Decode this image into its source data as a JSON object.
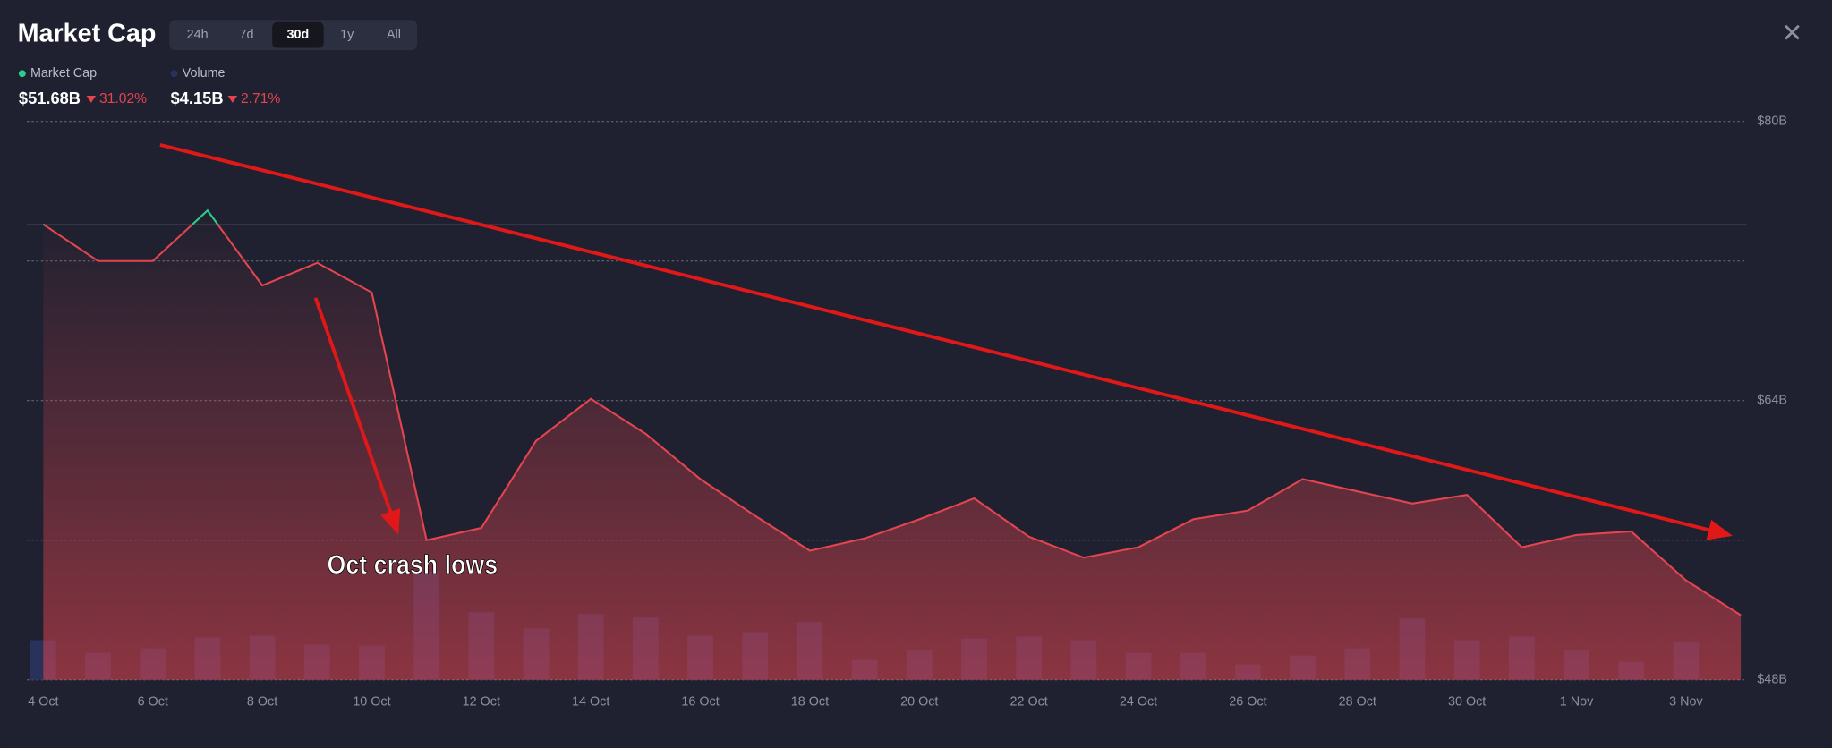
{
  "header": {
    "title": "Market Cap",
    "timeframes": [
      "24h",
      "7d",
      "30d",
      "1y",
      "All"
    ],
    "active_timeframe": 2
  },
  "stats": [
    {
      "value": "$51.68B",
      "change": "31.02%"
    },
    {
      "value": "$4.15B",
      "change": "2.71%"
    }
  ],
  "chart_data": {
    "type": "line",
    "categories": [
      "4 Oct",
      null,
      "6 Oct",
      null,
      "8 Oct",
      null,
      "10 Oct",
      null,
      "12 Oct",
      null,
      "14 Oct",
      null,
      "16 Oct",
      null,
      "18 Oct",
      null,
      "20 Oct",
      null,
      "22 Oct",
      null,
      "24 Oct",
      null,
      "26 Oct",
      null,
      "28 Oct",
      null,
      "30 Oct",
      null,
      "1 Nov",
      null,
      "3 Nov",
      null
    ],
    "series": [
      {
        "name": "Market Cap",
        "color": "#e5444f",
        "values": [
          74.1,
          72.0,
          72.0,
          74.9,
          70.6,
          71.9,
          70.2,
          56.0,
          56.7,
          61.7,
          64.1,
          62.1,
          59.5,
          57.4,
          55.4,
          56.1,
          57.2,
          58.4,
          56.2,
          55.0,
          55.6,
          57.2,
          57.7,
          59.5,
          58.8,
          58.1,
          58.6,
          55.6,
          56.3,
          56.5,
          53.7,
          51.7
        ]
      },
      {
        "name": "Volume",
        "color": "#28325a",
        "axis": "y2",
        "values": [
          4.4,
          3.0,
          3.5,
          4.7,
          4.9,
          3.9,
          3.8,
          12.0,
          7.5,
          5.7,
          7.3,
          6.9,
          4.9,
          5.3,
          6.4,
          2.2,
          3.3,
          4.6,
          4.8,
          4.4,
          3.0,
          3.0,
          1.7,
          2.7,
          3.5,
          6.8,
          4.4,
          4.8,
          3.3,
          2.0,
          4.2,
          null
        ]
      }
    ],
    "ylim": [
      48,
      80
    ],
    "yticks": [
      {
        "value": 48,
        "label": "$48B"
      },
      {
        "value": 56,
        "label": null
      },
      {
        "value": 64,
        "label": "$64B"
      },
      {
        "value": 72,
        "label": null
      },
      {
        "value": 80,
        "label": "$80B"
      }
    ],
    "y2lim": [
      0,
      62
    ],
    "grid": true,
    "annotation": "Oct crash lows"
  }
}
